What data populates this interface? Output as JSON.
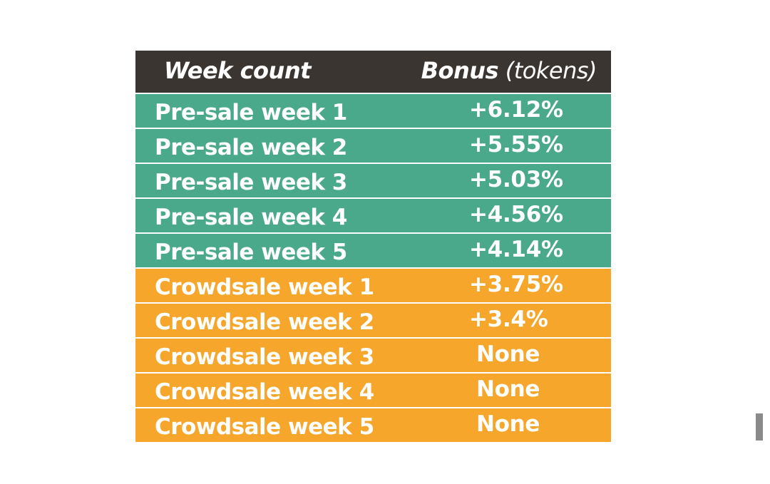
{
  "table": {
    "header": {
      "week_count": "Week count",
      "bonus_bold": "Bonus",
      "bonus_unit": " (tokens)"
    },
    "rows": [
      {
        "week": "Pre-sale week 1",
        "bonus": "+6.12%",
        "phase": "presale"
      },
      {
        "week": "Pre-sale week 2",
        "bonus": "+5.55%",
        "phase": "presale"
      },
      {
        "week": "Pre-sale week 3",
        "bonus": "+5.03%",
        "phase": "presale"
      },
      {
        "week": "Pre-sale week 4",
        "bonus": "+4.56%",
        "phase": "presale"
      },
      {
        "week": "Pre-sale week 5",
        "bonus": "+4.14%",
        "phase": "presale"
      },
      {
        "week": "Crowdsale week 1",
        "bonus": "+3.75%",
        "phase": "crowdsale"
      },
      {
        "week": "Crowdsale week 2",
        "bonus": "+3.4%",
        "phase": "crowdsale"
      },
      {
        "week": "Crowdsale week 3",
        "bonus": "None",
        "phase": "crowdsale"
      },
      {
        "week": "Crowdsale week 4",
        "bonus": "None",
        "phase": "crowdsale"
      },
      {
        "week": "Crowdsale week 5",
        "bonus": "None",
        "phase": "crowdsale"
      }
    ]
  },
  "colors": {
    "header": "#3a3531",
    "presale": "#4aa88b",
    "crowdsale": "#f5a62b",
    "text": "#ffffff"
  }
}
